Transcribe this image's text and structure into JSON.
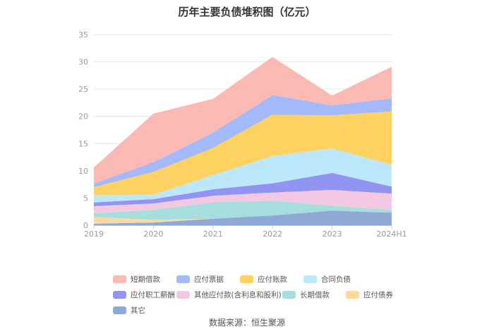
{
  "chart_data": {
    "type": "area",
    "stacked": true,
    "title": "历年主要负债堆积图（亿元）",
    "categories": [
      "2019",
      "2020",
      "2021",
      "2022",
      "2023",
      "2024H1"
    ],
    "ylim": [
      0,
      35
    ],
    "yticks": [
      "0",
      "5",
      "10",
      "15",
      "20",
      "25",
      "30",
      "35"
    ],
    "grid": true,
    "legend_position": "bottom",
    "series": [
      {
        "name": "其它",
        "color": "#8fa9d6",
        "values": [
          0.3,
          0.5,
          1.2,
          1.8,
          2.7,
          2.3
        ]
      },
      {
        "name": "应付债券",
        "color": "#fdd9a0",
        "values": [
          1.2,
          0.5,
          0.0,
          0.0,
          0.0,
          0.0
        ]
      },
      {
        "name": "长期借款",
        "color": "#a6dedd",
        "values": [
          0.7,
          1.8,
          3.0,
          2.7,
          0.9,
          0.5
        ]
      },
      {
        "name": "其他应付款(含利息和股利)",
        "color": "#f3c8e3",
        "values": [
          1.3,
          1.2,
          1.2,
          1.5,
          2.9,
          3.0
        ]
      },
      {
        "name": "应付职工薪酬",
        "color": "#9195f1",
        "values": [
          0.7,
          0.8,
          1.2,
          1.7,
          3.1,
          1.3
        ]
      },
      {
        "name": "合同负债",
        "color": "#bde8fb",
        "values": [
          1.3,
          0.8,
          2.6,
          5.0,
          4.5,
          4.0
        ]
      },
      {
        "name": "应付账款",
        "color": "#fdd262",
        "values": [
          1.5,
          4.2,
          5.0,
          7.6,
          6.1,
          9.8
        ]
      },
      {
        "name": "应付票据",
        "color": "#a4b9fa",
        "values": [
          0.6,
          1.8,
          2.8,
          3.6,
          1.8,
          2.4
        ]
      },
      {
        "name": "短期借款",
        "color": "#fab9b3",
        "values": [
          3.0,
          8.9,
          6.2,
          7.0,
          1.8,
          5.8
        ]
      }
    ]
  },
  "legend_order": [
    "短期借款",
    "应付票据",
    "应付账款",
    "合同负债",
    "应付职工薪酬",
    "其他应付款(含利息和股利)",
    "长期借款",
    "应付债券",
    "其它"
  ],
  "source": "数据来源：恒生聚源"
}
